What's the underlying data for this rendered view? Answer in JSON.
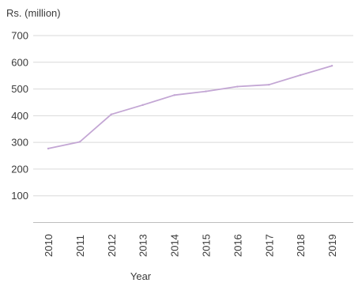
{
  "chart_data": {
    "type": "line",
    "title": "",
    "xlabel": "Year",
    "ylabel": "Rs. (million)",
    "x": [
      "2010",
      "2011",
      "2012",
      "2013",
      "2014",
      "2015",
      "2016",
      "2017",
      "2018",
      "2019"
    ],
    "series": [
      {
        "values": [
          277,
          302,
          405,
          440,
          477,
          491,
          509,
          516,
          552,
          587
        ],
        "color": "#c3a6d4"
      }
    ],
    "yticks": [
      100,
      200,
      300,
      400,
      500,
      600,
      700
    ],
    "ylim": [
      0,
      700
    ],
    "grid": "horizontal",
    "legend": "none"
  }
}
